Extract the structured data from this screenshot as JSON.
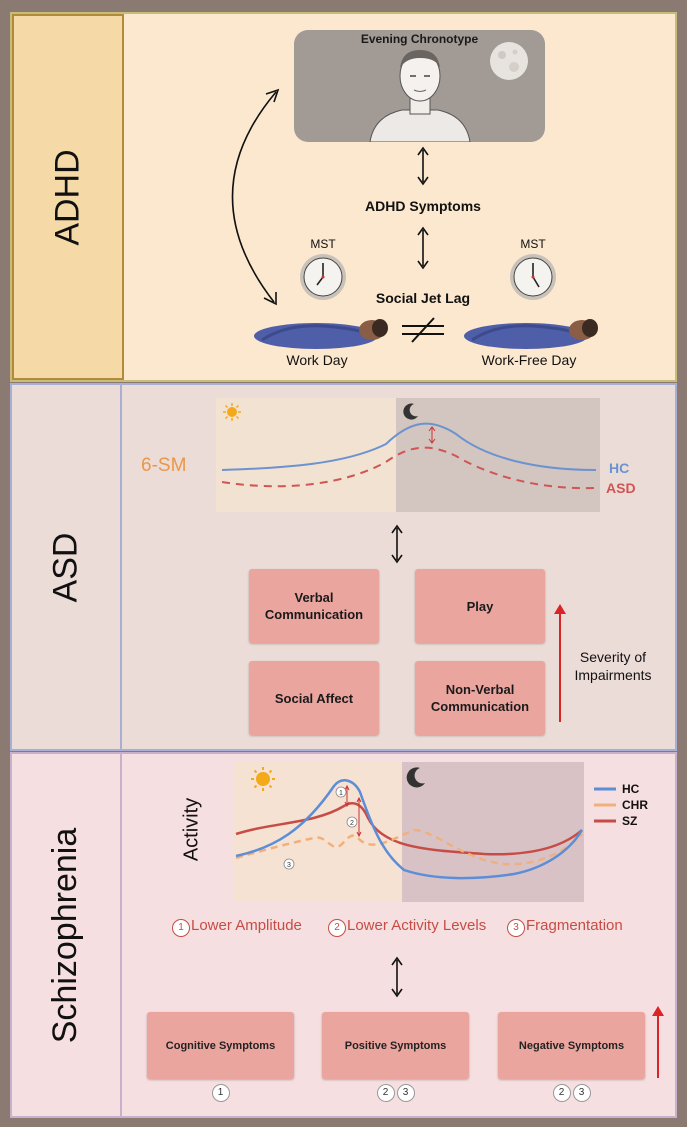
{
  "adhd": {
    "title": "ADHD",
    "chronotype_label": "Evening Chronotype",
    "symptoms_label": "ADHD Symptoms",
    "mst_left": "MST",
    "mst_right": "MST",
    "social_jet_lag": "Social Jet Lag",
    "work_day": "Work Day",
    "work_free_day": "Work-Free Day"
  },
  "asd": {
    "title": "ASD",
    "metric_label": "6-SM",
    "legend_hc": "HC",
    "legend_asd": "ASD",
    "boxes": {
      "verbal": "Verbal Communication",
      "play": "Play",
      "social": "Social Affect",
      "nonverbal": "Non-Verbal Communication"
    },
    "severity_label": "Severity of Impairments",
    "colors": {
      "hc": "#6b93cf",
      "asd": "#d05555",
      "metric": "#e99748"
    }
  },
  "schizophrenia": {
    "title": "Schizophrenia",
    "y_label": "Activity",
    "legend": [
      "HC",
      "CHR",
      "SZ"
    ],
    "features": [
      "Lower Amplitude",
      "Lower Activity Levels",
      "Fragmentation"
    ],
    "feature_nums": [
      "1",
      "2",
      "3"
    ],
    "boxes": [
      {
        "label": "Cognitive Symptoms",
        "refs": [
          "1"
        ]
      },
      {
        "label": "Positive Symptoms",
        "refs": [
          "2",
          "3"
        ]
      },
      {
        "label": "Negative Symptoms",
        "refs": [
          "2",
          "3"
        ]
      }
    ],
    "colors": {
      "hc": "#5b8ed6",
      "chr": "#f1b07b",
      "sz": "#c64d45"
    }
  }
}
